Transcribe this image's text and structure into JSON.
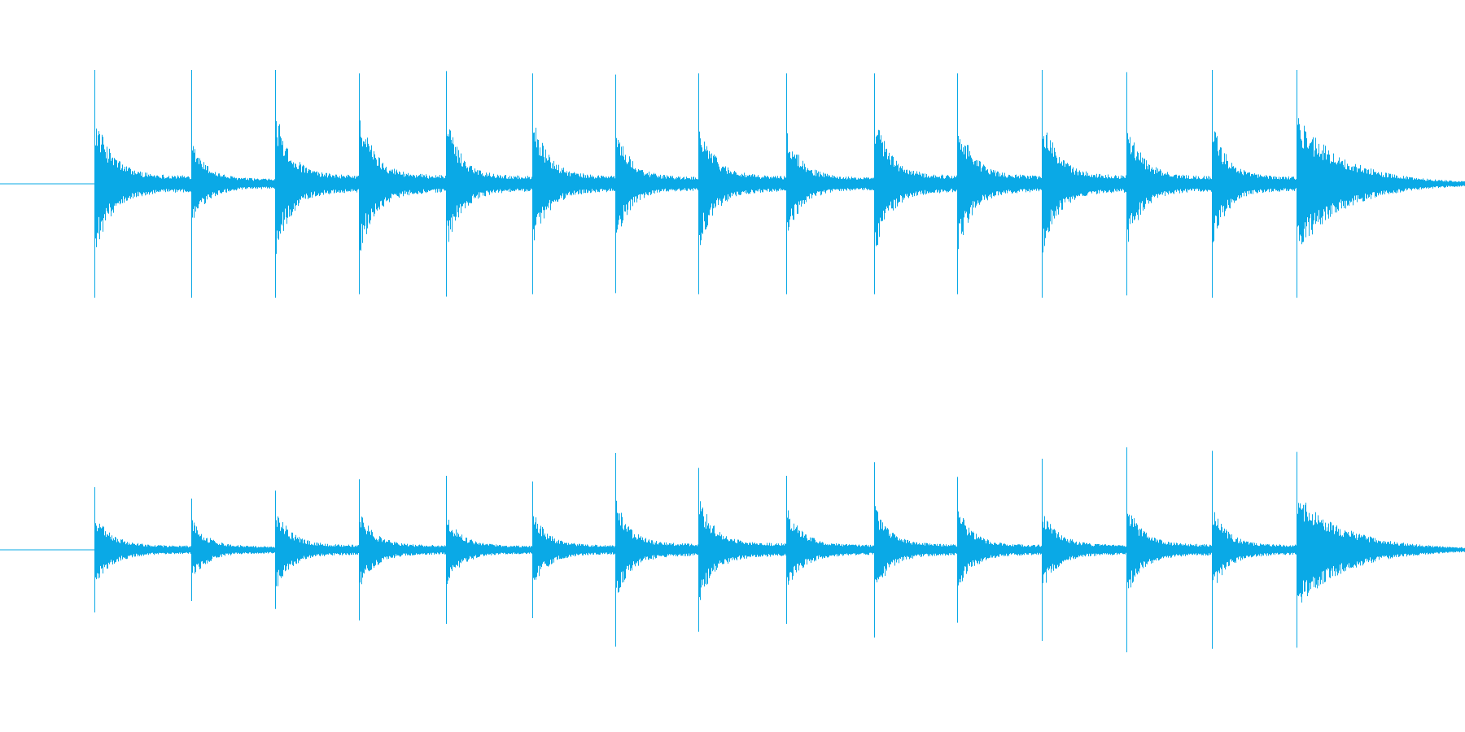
{
  "waveform": {
    "color": "#0aa9e6",
    "background": "#ffffff",
    "channels": [
      {
        "id": "top",
        "onsets_seconds": [
          0.0,
          0.235,
          0.437,
          0.64,
          0.852,
          1.06,
          1.262,
          1.462,
          1.676,
          1.888,
          2.09,
          2.295,
          2.5,
          2.707,
          2.912
        ],
        "peak": [
          1.0,
          1.0,
          1.0,
          0.97,
          0.99,
          0.97,
          0.96,
          0.97,
          0.97,
          0.97,
          0.97,
          1.0,
          0.98,
          1.0,
          1.0
        ],
        "decay": [
          0.9,
          0.55,
          0.95,
          0.95,
          0.85,
          0.9,
          0.75,
          0.85,
          0.7,
          0.95,
          0.9,
          0.95,
          0.85,
          0.8,
          0.9
        ],
        "duration_seconds": 3.32
      },
      {
        "id": "bottom",
        "onsets_seconds": [
          0.0,
          0.235,
          0.437,
          0.64,
          0.852,
          1.06,
          1.262,
          1.462,
          1.676,
          1.888,
          2.09,
          2.295,
          2.5,
          2.707,
          2.912
        ],
        "peak": [
          0.55,
          0.45,
          0.52,
          0.62,
          0.65,
          0.6,
          0.85,
          0.72,
          0.65,
          0.77,
          0.64,
          0.8,
          0.9,
          0.87,
          0.86
        ],
        "decay": [
          0.45,
          0.4,
          0.55,
          0.5,
          0.45,
          0.5,
          0.65,
          0.7,
          0.55,
          0.6,
          0.55,
          0.55,
          0.6,
          0.55,
          0.75
        ],
        "duration_seconds": 3.32
      }
    ]
  }
}
